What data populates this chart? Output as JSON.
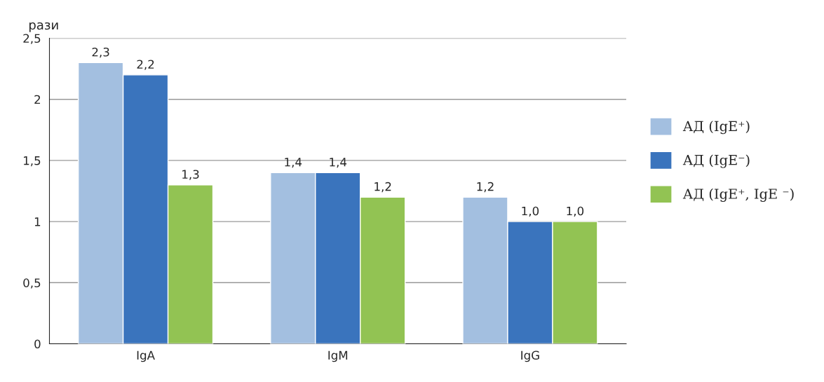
{
  "chart_data": {
    "type": "bar",
    "ylabel": "рази",
    "categories": [
      "IgA",
      "IgM",
      "IgG"
    ],
    "series": [
      {
        "name": "АД (IgE⁺)",
        "color": "#a3bfe0",
        "values": [
          2.3,
          1.4,
          1.2
        ],
        "value_labels": [
          "2,3",
          "1,4",
          "1,2"
        ]
      },
      {
        "name": "АД (IgE⁻)",
        "color": "#3a74bd",
        "values": [
          2.2,
          1.4,
          1.0
        ],
        "value_labels": [
          "2,2",
          "1,4",
          "1,0"
        ]
      },
      {
        "name": "АД (IgE⁺, IgE ⁻)",
        "color": "#92c353",
        "values": [
          1.3,
          1.2,
          1.0
        ],
        "value_labels": [
          "1,3",
          "1,2",
          "1,0"
        ]
      }
    ],
    "ylim": [
      0,
      2.5
    ],
    "yticks": [
      {
        "value": 0,
        "label": "0"
      },
      {
        "value": 0.5,
        "label": "0,5"
      },
      {
        "value": 1,
        "label": "1"
      },
      {
        "value": 1.5,
        "label": "1,5"
      },
      {
        "value": 2,
        "label": "2"
      },
      {
        "value": 2.5,
        "label": "2,5"
      }
    ],
    "grid": "y",
    "legend": "right"
  }
}
